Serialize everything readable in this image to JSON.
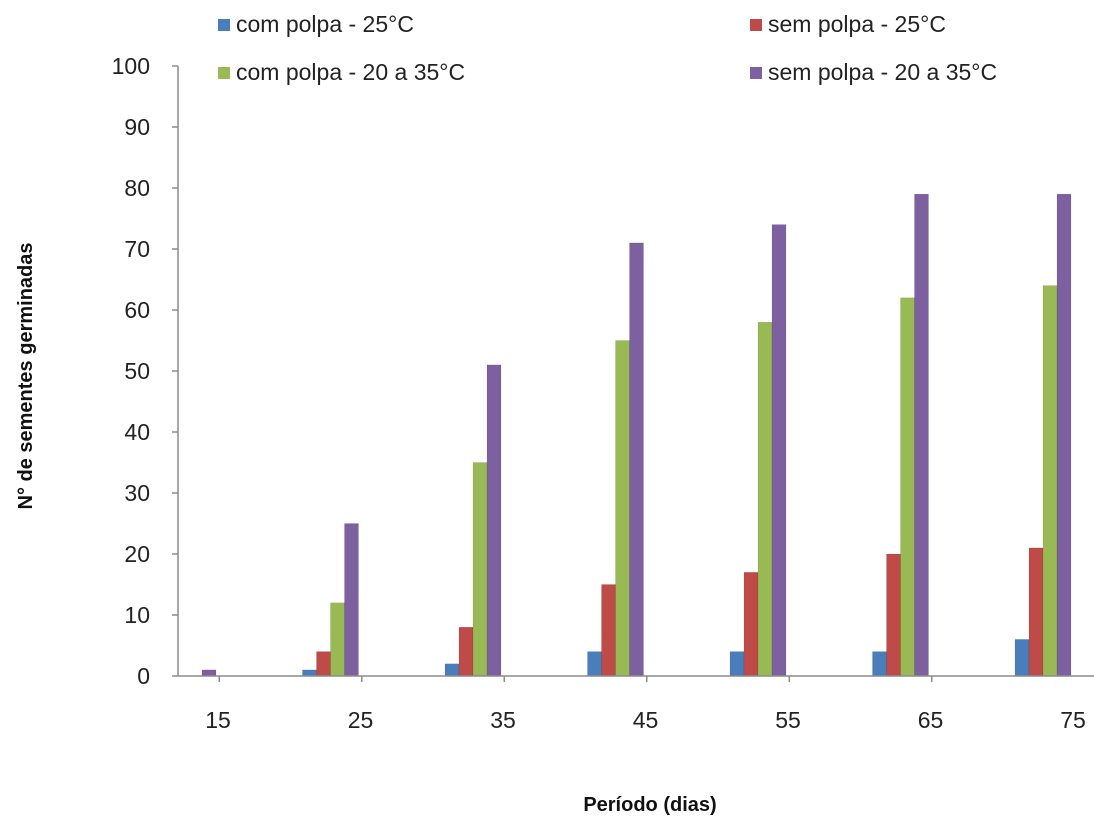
{
  "chart_data": {
    "type": "bar",
    "xlabel": "Período (dias)",
    "ylabel": "N° de sementes germinadas",
    "categories": [
      "15",
      "25",
      "35",
      "45",
      "55",
      "65",
      "75"
    ],
    "ylim": [
      0,
      100
    ],
    "yticks": [
      0,
      10,
      20,
      30,
      40,
      50,
      60,
      70,
      80,
      90,
      100
    ],
    "grid": false,
    "legend_position": "top",
    "series": [
      {
        "name": "com polpa - 25°C",
        "color": "#4a7ebb",
        "values": [
          0,
          1,
          2,
          4,
          4,
          4,
          6
        ]
      },
      {
        "name": "sem polpa - 25°C",
        "color": "#be4b48",
        "values": [
          0,
          4,
          8,
          15,
          17,
          20,
          21
        ]
      },
      {
        "name": "com polpa - 20 a 35°C",
        "color": "#98b954",
        "values": [
          0,
          12,
          35,
          55,
          58,
          62,
          64
        ]
      },
      {
        "name": "sem polpa - 20 a 35°C",
        "color": "#7d60a0",
        "values": [
          1,
          25,
          51,
          71,
          74,
          79,
          79
        ]
      }
    ]
  }
}
